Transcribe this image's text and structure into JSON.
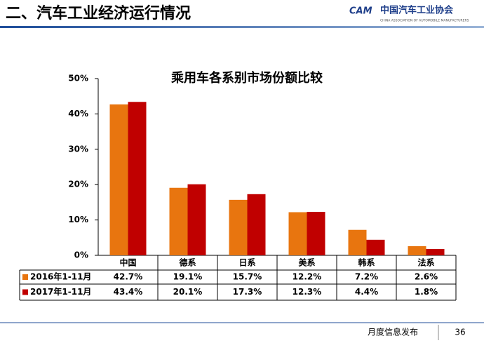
{
  "header": {
    "title": "二、汽车工业经济运行情况",
    "organization": "中国汽车工业协会",
    "organization_en": "CHINA ASSOCIATION OF AUTOMOBILE MANUFACTURERS"
  },
  "footer": {
    "text": "月度信息发布",
    "page": 36
  },
  "chart_data": {
    "type": "bar",
    "title": "乘用车各系别市场份额比较",
    "categories": [
      "中国",
      "德系",
      "日系",
      "美系",
      "韩系",
      "法系"
    ],
    "series": [
      {
        "name": "2016年1-11月",
        "color": "#e8750f",
        "values": [
          42.7,
          19.1,
          15.7,
          12.2,
          7.2,
          2.6
        ],
        "value_labels": [
          "42.7%",
          "19.1%",
          "15.7%",
          "12.2%",
          "7.2%",
          "2.6%"
        ]
      },
      {
        "name": "2017年1-11月",
        "color": "#c00000",
        "values": [
          43.4,
          20.1,
          17.3,
          12.3,
          4.4,
          1.8
        ],
        "value_labels": [
          "43.4%",
          "20.1%",
          "17.3%",
          "12.3%",
          "4.4%",
          "1.8%"
        ]
      }
    ],
    "ylim": [
      0,
      50
    ],
    "yticks": [
      {
        "value": 0,
        "label": "0%"
      },
      {
        "value": 10,
        "label": "10%"
      },
      {
        "value": 20,
        "label": "20%"
      },
      {
        "value": 30,
        "label": "30%"
      },
      {
        "value": 40,
        "label": "40%"
      },
      {
        "value": 50,
        "label": "50%"
      }
    ]
  }
}
